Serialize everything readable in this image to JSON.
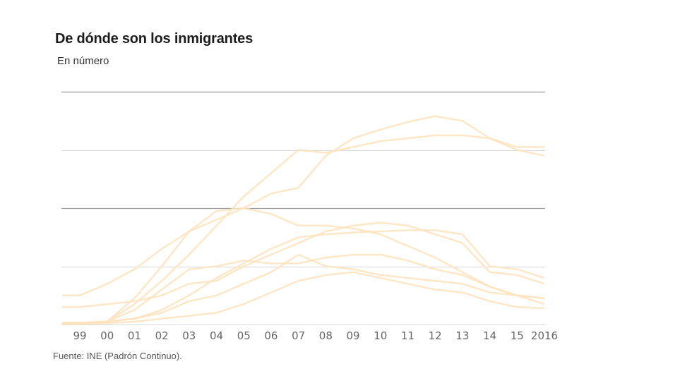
{
  "header": {
    "title": "De dónde son los inmigrantes",
    "subtitle": "En número"
  },
  "footer": {
    "source": "Fuente: INE (Padrón Continuo)."
  },
  "colors": {
    "series_line": "#fde3bd",
    "gridline_major": "#9a9a9a",
    "gridline_minor": "#d9d9d9",
    "tick_text": "#666666"
  },
  "chart_data": {
    "type": "line",
    "title": "De dónde son los inmigrantes",
    "subtitle": "En número",
    "xlabel": "",
    "ylabel": "",
    "x": [
      "99",
      "00",
      "01",
      "02",
      "03",
      "04",
      "05",
      "06",
      "07",
      "08",
      "09",
      "10",
      "11",
      "12",
      "13",
      "14",
      "15",
      "2016"
    ],
    "ylim": [
      0,
      4
    ],
    "y_units_note": "relative units; y-axis has no tick labels (each gridline = 1 unit)",
    "grid": true,
    "legend": "none",
    "series": [
      {
        "name": "series-1",
        "values": [
          0.02,
          0.05,
          0.45,
          1.0,
          1.6,
          1.95,
          2.0,
          2.25,
          2.35,
          2.9,
          3.2,
          3.35,
          3.48,
          3.58,
          3.5,
          3.2,
          3.0,
          2.9
        ]
      },
      {
        "name": "series-2",
        "values": [
          0.02,
          0.05,
          0.35,
          0.75,
          1.2,
          1.7,
          2.2,
          2.6,
          3.0,
          2.95,
          3.05,
          3.15,
          3.2,
          3.25,
          3.25,
          3.2,
          3.05,
          3.05
        ]
      },
      {
        "name": "series-3",
        "values": [
          0.5,
          0.7,
          0.95,
          1.3,
          1.6,
          1.8,
          2.0,
          1.9,
          1.7,
          1.7,
          1.65,
          1.55,
          1.35,
          1.15,
          0.9,
          0.65,
          0.5,
          0.45
        ]
      },
      {
        "name": "series-4",
        "values": [
          0.3,
          0.35,
          0.4,
          0.5,
          0.7,
          0.75,
          1.0,
          1.2,
          1.4,
          1.6,
          1.7,
          1.75,
          1.7,
          1.55,
          1.4,
          0.9,
          0.85,
          0.7
        ]
      },
      {
        "name": "series-5",
        "values": [
          0.03,
          0.05,
          0.25,
          0.6,
          0.95,
          1.0,
          1.1,
          1.05,
          1.05,
          1.15,
          1.2,
          1.2,
          1.1,
          0.95,
          0.85,
          0.65,
          0.5,
          0.45
        ]
      },
      {
        "name": "series-6",
        "values": [
          0.02,
          0.05,
          0.1,
          0.25,
          0.5,
          0.8,
          1.05,
          1.3,
          1.5,
          1.55,
          1.58,
          1.6,
          1.62,
          1.62,
          1.55,
          1.0,
          0.95,
          0.8
        ]
      },
      {
        "name": "series-7",
        "values": [
          0.03,
          0.05,
          0.1,
          0.2,
          0.4,
          0.5,
          0.7,
          0.9,
          1.2,
          1.0,
          0.95,
          0.85,
          0.8,
          0.75,
          0.7,
          0.55,
          0.5,
          0.35
        ]
      },
      {
        "name": "series-8",
        "values": [
          0.01,
          0.02,
          0.05,
          0.1,
          0.15,
          0.2,
          0.35,
          0.55,
          0.75,
          0.85,
          0.9,
          0.8,
          0.7,
          0.6,
          0.55,
          0.4,
          0.3,
          0.28
        ]
      }
    ]
  }
}
